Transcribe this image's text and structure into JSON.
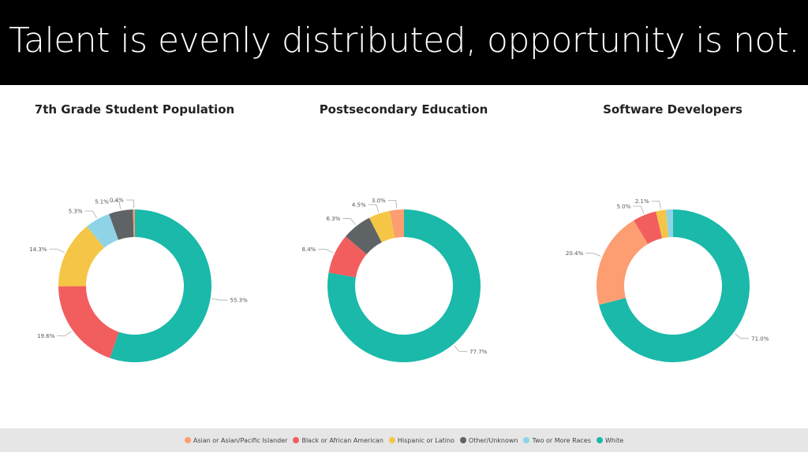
{
  "banner": {
    "title": "Talent is evenly distributed, opportunity is not."
  },
  "legend": [
    {
      "name": "Asian or Asian/Pacific Islander",
      "color": "#fc9d72"
    },
    {
      "name": "Black or African American",
      "color": "#f25e5e"
    },
    {
      "name": "Hispanic or Latino",
      "color": "#f5c646"
    },
    {
      "name": "Other/Unknown",
      "color": "#5e6466"
    },
    {
      "name": "Two or More Races",
      "color": "#8fd4e6"
    },
    {
      "name": "White",
      "color": "#1ab9a9"
    }
  ],
  "chart_data": [
    {
      "type": "pie",
      "title": "7th Grade Student Population",
      "labels": [
        "White",
        "Black or African American",
        "Hispanic or Latino",
        "Two or More Races",
        "Other/Unknown",
        "Asian or Asian/Pacific Islander"
      ],
      "values": [
        55.3,
        19.6,
        14.3,
        5.3,
        5.1,
        0.4
      ],
      "value_labels": [
        "55.3%",
        "19.6%",
        "14.3%",
        "5.3%",
        "5.1%",
        "0.4%"
      ],
      "donut": true
    },
    {
      "type": "pie",
      "title": "Postsecondary Education",
      "labels": [
        "White",
        "Black or African American",
        "Other/Unknown",
        "Hispanic or Latino",
        "Asian or Asian/Pacific Islander"
      ],
      "values": [
        77.7,
        8.4,
        6.3,
        4.5,
        3.0
      ],
      "value_labels": [
        "77.7%",
        "8.4%",
        "6.3%",
        "4.5%",
        "3.0%"
      ],
      "donut": true
    },
    {
      "type": "pie",
      "title": "Software Developers",
      "labels": [
        "White",
        "Asian or Asian/Pacific Islander",
        "Black or African American",
        "Hispanic or Latino",
        "Two or More Races"
      ],
      "values": [
        71.0,
        20.4,
        5.0,
        2.1,
        1.5
      ],
      "value_labels": [
        "71.0%",
        "20.4%",
        "5.0%",
        "2.1%",
        ""
      ],
      "donut": true
    }
  ]
}
